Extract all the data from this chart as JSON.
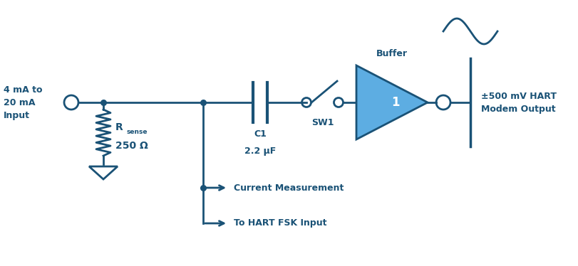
{
  "background_color": "#ffffff",
  "line_color": "#1a5276",
  "line_width": 2.0,
  "text_color": "#1a5276",
  "teal_color": "#5dade2",
  "figsize": [
    8.12,
    3.74
  ],
  "dpi": 100,
  "input_label": "4 mA to\n20 mA\nInput",
  "rsense_label1": "R",
  "rsense_label2": "sense",
  "rsense_label3": "250 Ω",
  "c1_label1": "C1",
  "c1_label2": "2.2 μF",
  "sw1_label": "SW1",
  "buffer_label": "Buffer",
  "buffer_number": "1",
  "output_label": "±500 mV HART\nModem Output",
  "current_meas_label": "Current Measurement",
  "hart_fsk_label": "To HART FSK Input",
  "xlim": [
    0,
    8.12
  ],
  "ylim": [
    0,
    3.74
  ]
}
